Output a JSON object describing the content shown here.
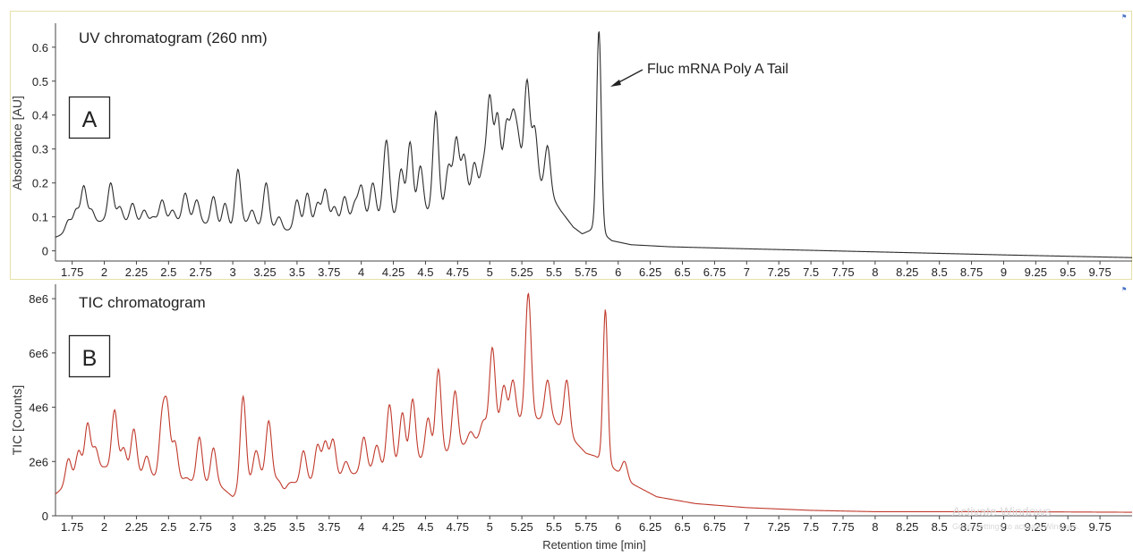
{
  "chart_data": [
    {
      "type": "line",
      "title": "UV chromatogram (260 nm)",
      "panel_label": "A",
      "xlabel": "",
      "ylabel": "Absorbance [AU]",
      "xlim": [
        1.62,
        10.0
      ],
      "ylim": [
        -0.03,
        0.66
      ],
      "x_ticks": [
        "1.75",
        "2",
        "2.25",
        "2.5",
        "2.75",
        "3",
        "3.25",
        "3.5",
        "3.75",
        "4",
        "4.25",
        "4.5",
        "4.75",
        "5",
        "5.25",
        "5.5",
        "5.75",
        "6",
        "6.25",
        "6.5",
        "6.75",
        "7",
        "7.25",
        "7.5",
        "7.75",
        "8",
        "8.25",
        "8.5",
        "8.75",
        "9",
        "9.25",
        "9.5",
        "9.75"
      ],
      "y_ticks": [
        "0",
        "0.1",
        "0.2",
        "0.3",
        "0.4",
        "0.5",
        "0.6"
      ],
      "y_tick_values": [
        0,
        0.1,
        0.2,
        0.3,
        0.4,
        0.5,
        0.6
      ],
      "color": "#2b2b2b",
      "annotation": {
        "text": "Fluc mRNA Poly A Tail",
        "x": 5.85,
        "y": 0.49
      },
      "baseline": [
        [
          1.62,
          0.04
        ],
        [
          1.8,
          0.07
        ],
        [
          2.0,
          0.09
        ],
        [
          2.3,
          0.08
        ],
        [
          2.7,
          0.09
        ],
        [
          2.95,
          0.06
        ],
        [
          3.1,
          0.08
        ],
        [
          3.4,
          0.06
        ],
        [
          3.7,
          0.07
        ],
        [
          4.0,
          0.09
        ],
        [
          4.3,
          0.1
        ],
        [
          4.6,
          0.12
        ],
        [
          4.8,
          0.14
        ],
        [
          5.0,
          0.18
        ],
        [
          5.25,
          0.2
        ],
        [
          5.45,
          0.18
        ],
        [
          5.55,
          0.12
        ],
        [
          5.65,
          0.07
        ],
        [
          5.72,
          0.05
        ],
        [
          5.78,
          0.06
        ],
        [
          5.82,
          0.07
        ],
        [
          5.95,
          0.03
        ],
        [
          6.1,
          0.018
        ],
        [
          6.4,
          0.012
        ],
        [
          7.0,
          0.006
        ],
        [
          8.0,
          -0.003
        ],
        [
          9.0,
          -0.012
        ],
        [
          10.0,
          -0.02
        ]
      ],
      "peaks": [
        {
          "rt": 1.72,
          "height": 0.09
        },
        {
          "rt": 1.78,
          "height": 0.12
        },
        {
          "rt": 1.84,
          "height": 0.19
        },
        {
          "rt": 1.9,
          "height": 0.12
        },
        {
          "rt": 2.05,
          "height": 0.2
        },
        {
          "rt": 2.12,
          "height": 0.13
        },
        {
          "rt": 2.22,
          "height": 0.14
        },
        {
          "rt": 2.31,
          "height": 0.12
        },
        {
          "rt": 2.38,
          "height": 0.1
        },
        {
          "rt": 2.45,
          "height": 0.15
        },
        {
          "rt": 2.53,
          "height": 0.12
        },
        {
          "rt": 2.63,
          "height": 0.17
        },
        {
          "rt": 2.72,
          "height": 0.15
        },
        {
          "rt": 2.85,
          "height": 0.16
        },
        {
          "rt": 2.94,
          "height": 0.14
        },
        {
          "rt": 3.04,
          "height": 0.24
        },
        {
          "rt": 3.15,
          "height": 0.12
        },
        {
          "rt": 3.26,
          "height": 0.2
        },
        {
          "rt": 3.36,
          "height": 0.1
        },
        {
          "rt": 3.5,
          "height": 0.15
        },
        {
          "rt": 3.58,
          "height": 0.17
        },
        {
          "rt": 3.66,
          "height": 0.14
        },
        {
          "rt": 3.72,
          "height": 0.18
        },
        {
          "rt": 3.79,
          "height": 0.13
        },
        {
          "rt": 3.87,
          "height": 0.16
        },
        {
          "rt": 3.95,
          "height": 0.14
        },
        {
          "rt": 4.0,
          "height": 0.19
        },
        {
          "rt": 4.09,
          "height": 0.2
        },
        {
          "rt": 4.18,
          "height": 0.16
        },
        {
          "rt": 4.2,
          "height": 0.28
        },
        {
          "rt": 4.31,
          "height": 0.24
        },
        {
          "rt": 4.38,
          "height": 0.32
        },
        {
          "rt": 4.46,
          "height": 0.25
        },
        {
          "rt": 4.58,
          "height": 0.41
        },
        {
          "rt": 4.68,
          "height": 0.25
        },
        {
          "rt": 4.74,
          "height": 0.33
        },
        {
          "rt": 4.8,
          "height": 0.28
        },
        {
          "rt": 4.88,
          "height": 0.26
        },
        {
          "rt": 4.95,
          "height": 0.25
        },
        {
          "rt": 5.0,
          "height": 0.45
        },
        {
          "rt": 5.06,
          "height": 0.4
        },
        {
          "rt": 5.13,
          "height": 0.37
        },
        {
          "rt": 5.18,
          "height": 0.38
        },
        {
          "rt": 5.22,
          "height": 0.32
        },
        {
          "rt": 5.29,
          "height": 0.5
        },
        {
          "rt": 5.35,
          "height": 0.36
        },
        {
          "rt": 5.45,
          "height": 0.31
        },
        {
          "rt": 5.85,
          "height": 0.65
        }
      ]
    },
    {
      "type": "line",
      "title": "TIC chromatogram",
      "panel_label": "B",
      "xlabel": "Retention time [min]",
      "ylabel": "TIC [Counts]",
      "xlim": [
        1.62,
        10.0
      ],
      "ylim": [
        0,
        8400000
      ],
      "x_ticks": [
        "1.75",
        "2",
        "2.25",
        "2.5",
        "2.75",
        "3",
        "3.25",
        "3.5",
        "3.75",
        "4",
        "4.25",
        "4.5",
        "4.75",
        "5",
        "5.25",
        "5.5",
        "5.75",
        "6",
        "6.25",
        "6.5",
        "6.75",
        "7",
        "7.25",
        "7.5",
        "7.75",
        "8",
        "8.25",
        "8.5",
        "8.75",
        "9",
        "9.25",
        "9.5",
        "9.75"
      ],
      "y_ticks": [
        "0",
        "2e6",
        "4e6",
        "6e6",
        "8e6"
      ],
      "y_tick_values": [
        0,
        2000000,
        4000000,
        6000000,
        8000000
      ],
      "color": "#c0392b",
      "baseline": [
        [
          1.62,
          800000
        ],
        [
          1.8,
          1500000
        ],
        [
          2.0,
          1800000
        ],
        [
          2.3,
          1500000
        ],
        [
          2.6,
          1300000
        ],
        [
          2.9,
          1100000
        ],
        [
          3.0,
          700000
        ],
        [
          3.2,
          1500000
        ],
        [
          3.5,
          1200000
        ],
        [
          3.8,
          1400000
        ],
        [
          4.0,
          1600000
        ],
        [
          4.3,
          1900000
        ],
        [
          4.6,
          2200000
        ],
        [
          4.9,
          2800000
        ],
        [
          5.1,
          3400000
        ],
        [
          5.3,
          3600000
        ],
        [
          5.5,
          3500000
        ],
        [
          5.65,
          2800000
        ],
        [
          5.75,
          2300000
        ],
        [
          5.82,
          2200000
        ],
        [
          5.95,
          1800000
        ],
        [
          6.1,
          1200000
        ],
        [
          6.3,
          700000
        ],
        [
          6.6,
          450000
        ],
        [
          7.0,
          300000
        ],
        [
          7.5,
          200000
        ],
        [
          8.0,
          150000
        ],
        [
          9.0,
          150000
        ],
        [
          10.0,
          130000
        ]
      ],
      "peaks": [
        {
          "rt": 1.72,
          "height": 2100000
        },
        {
          "rt": 1.8,
          "height": 2400000
        },
        {
          "rt": 1.87,
          "height": 3400000
        },
        {
          "rt": 1.93,
          "height": 2500000
        },
        {
          "rt": 2.08,
          "height": 3900000
        },
        {
          "rt": 2.15,
          "height": 2500000
        },
        {
          "rt": 2.23,
          "height": 3200000
        },
        {
          "rt": 2.33,
          "height": 2200000
        },
        {
          "rt": 2.45,
          "height": 3500000
        },
        {
          "rt": 2.49,
          "height": 3800000
        },
        {
          "rt": 2.55,
          "height": 2700000
        },
        {
          "rt": 2.64,
          "height": 1400000
        },
        {
          "rt": 2.74,
          "height": 2900000
        },
        {
          "rt": 2.85,
          "height": 2500000
        },
        {
          "rt": 3.08,
          "height": 4400000
        },
        {
          "rt": 3.18,
          "height": 2400000
        },
        {
          "rt": 3.28,
          "height": 3500000
        },
        {
          "rt": 3.4,
          "height": 1000000
        },
        {
          "rt": 3.55,
          "height": 2400000
        },
        {
          "rt": 3.66,
          "height": 2600000
        },
        {
          "rt": 3.72,
          "height": 2700000
        },
        {
          "rt": 3.78,
          "height": 2800000
        },
        {
          "rt": 3.88,
          "height": 2000000
        },
        {
          "rt": 4.02,
          "height": 2900000
        },
        {
          "rt": 4.12,
          "height": 2600000
        },
        {
          "rt": 4.22,
          "height": 4100000
        },
        {
          "rt": 4.32,
          "height": 3800000
        },
        {
          "rt": 4.4,
          "height": 4300000
        },
        {
          "rt": 4.52,
          "height": 3600000
        },
        {
          "rt": 4.6,
          "height": 5400000
        },
        {
          "rt": 4.73,
          "height": 4600000
        },
        {
          "rt": 4.85,
          "height": 3100000
        },
        {
          "rt": 4.95,
          "height": 3500000
        },
        {
          "rt": 5.02,
          "height": 6200000
        },
        {
          "rt": 5.11,
          "height": 4800000
        },
        {
          "rt": 5.18,
          "height": 5000000
        },
        {
          "rt": 5.3,
          "height": 8200000
        },
        {
          "rt": 5.45,
          "height": 5000000
        },
        {
          "rt": 5.6,
          "height": 5000000
        },
        {
          "rt": 5.9,
          "height": 7600000
        },
        {
          "rt": 6.05,
          "height": 2000000
        }
      ]
    }
  ],
  "watermark": {
    "line1": "Activate Windows",
    "line2": "Go to Settings to activate Windows."
  },
  "panel_pin_icon": "pin-icon"
}
